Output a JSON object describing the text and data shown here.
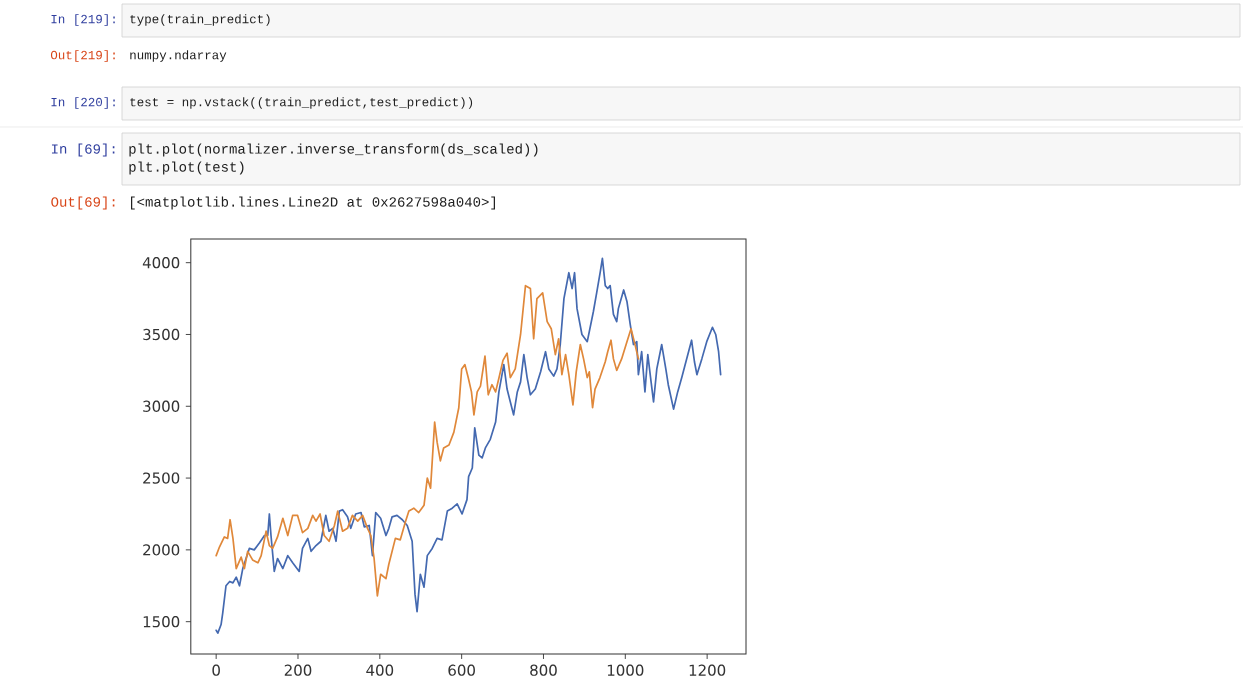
{
  "chart_data": {
    "type": "line",
    "xlim": [
      -62,
      1295
    ],
    "ylim": [
      1275,
      4165
    ],
    "xticks": [
      0,
      200,
      400,
      600,
      800,
      1000,
      1200
    ],
    "yticks": [
      1500,
      2000,
      2500,
      3000,
      3500,
      4000
    ],
    "series": [
      {
        "color": "#4469b0",
        "x": [
          0,
          4,
          12,
          16,
          24,
          33,
          41,
          49,
          57,
          65,
          73,
          81,
          93,
          106,
          118,
          126,
          130,
          134,
          142,
          150,
          163,
          175,
          187,
          203,
          211,
          224,
          232,
          244,
          256,
          268,
          276,
          285,
          293,
          301,
          309,
          321,
          329,
          341,
          354,
          362,
          374,
          382,
          390,
          402,
          415,
          422,
          430,
          442,
          455,
          467,
          479,
          486,
          491,
          499,
          508,
          516,
          528,
          540,
          552,
          565,
          577,
          589,
          601,
          613,
          617,
          626,
          632,
          642,
          650,
          658,
          670,
          683,
          691,
          703,
          711,
          719,
          727,
          736,
          744,
          752,
          760,
          768,
          780,
          793,
          805,
          813,
          825,
          833,
          841,
          850,
          862,
          870,
          876,
          882,
          894,
          907,
          922,
          930,
          939,
          944,
          951,
          957,
          963,
          971,
          979,
          983,
          996,
          1004,
          1012,
          1020,
          1028,
          1032,
          1040,
          1048,
          1055,
          1063,
          1069,
          1077,
          1089,
          1099,
          1105,
          1118,
          1128,
          1138,
          1150,
          1162,
          1169,
          1175,
          1187,
          1199,
          1213,
          1221,
          1228,
          1233
        ],
        "values": [
          1440,
          1420,
          1480,
          1560,
          1750,
          1780,
          1770,
          1810,
          1750,
          1870,
          1940,
          2010,
          2000,
          2050,
          2100,
          2100,
          2250,
          2100,
          1850,
          1940,
          1870,
          1960,
          1910,
          1850,
          2010,
          2080,
          1990,
          2030,
          2060,
          2240,
          2130,
          2150,
          2060,
          2270,
          2280,
          2230,
          2150,
          2250,
          2260,
          2160,
          2170,
          1960,
          2260,
          2220,
          2100,
          2150,
          2230,
          2240,
          2210,
          2170,
          2060,
          1690,
          1570,
          1830,
          1740,
          1960,
          2010,
          2080,
          2070,
          2270,
          2290,
          2320,
          2250,
          2350,
          2510,
          2570,
          2850,
          2660,
          2640,
          2710,
          2770,
          2890,
          3100,
          3290,
          3120,
          3030,
          2940,
          3100,
          3170,
          3360,
          3200,
          3080,
          3120,
          3240,
          3380,
          3260,
          3210,
          3260,
          3430,
          3750,
          3930,
          3820,
          3930,
          3680,
          3500,
          3450,
          3660,
          3790,
          3940,
          4030,
          3840,
          3820,
          3840,
          3640,
          3590,
          3680,
          3810,
          3730,
          3570,
          3430,
          3450,
          3220,
          3380,
          3100,
          3360,
          3170,
          3030,
          3260,
          3430,
          3260,
          3150,
          2980,
          3100,
          3200,
          3330,
          3460,
          3310,
          3220,
          3330,
          3450,
          3550,
          3500,
          3380,
          3220
        ]
      },
      {
        "color": "#e0883a",
        "x": [
          0,
          8,
          20,
          28,
          34,
          41,
          49,
          61,
          69,
          77,
          89,
          102,
          110,
          122,
          130,
          138,
          150,
          163,
          175,
          187,
          199,
          211,
          224,
          236,
          244,
          254,
          264,
          276,
          289,
          297,
          309,
          321,
          333,
          346,
          358,
          370,
          378,
          386,
          394,
          402,
          415,
          422,
          438,
          450,
          463,
          471,
          483,
          495,
          508,
          516,
          524,
          534,
          540,
          548,
          556,
          569,
          581,
          593,
          600,
          608,
          616,
          624,
          630,
          638,
          646,
          657,
          665,
          674,
          683,
          693,
          701,
          711,
          719,
          731,
          744,
          756,
          768,
          776,
          784,
          798,
          809,
          819,
          829,
          837,
          845,
          854,
          862,
          872,
          880,
          890,
          898,
          907,
          912,
          920,
          926,
          938,
          951,
          957,
          965,
          971,
          979,
          991,
          1004,
          1014,
          1022,
          1032
        ],
        "values": [
          1960,
          2020,
          2090,
          2080,
          2210,
          2080,
          1870,
          1950,
          1870,
          1990,
          1930,
          1910,
          1960,
          2130,
          2030,
          2010,
          2090,
          2220,
          2100,
          2240,
          2240,
          2120,
          2150,
          2240,
          2200,
          2250,
          2100,
          2060,
          2170,
          2270,
          2130,
          2150,
          2240,
          2200,
          2240,
          2150,
          2100,
          1940,
          1680,
          1830,
          1800,
          1900,
          2080,
          2070,
          2200,
          2270,
          2290,
          2260,
          2310,
          2500,
          2430,
          2890,
          2750,
          2620,
          2710,
          2730,
          2820,
          2990,
          3260,
          3290,
          3200,
          3100,
          2940,
          3100,
          3140,
          3350,
          3080,
          3150,
          3100,
          3220,
          3320,
          3370,
          3200,
          3260,
          3500,
          3840,
          3820,
          3470,
          3750,
          3790,
          3590,
          3540,
          3360,
          3470,
          3220,
          3360,
          3220,
          3010,
          3240,
          3430,
          3330,
          3200,
          3240,
          2990,
          3120,
          3200,
          3310,
          3380,
          3460,
          3330,
          3250,
          3330,
          3450,
          3540,
          3450,
          3330
        ]
      }
    ],
    "annotations": [
      "In [219]:",
      "type(train_predict)",
      "Out[219]:",
      "numpy.ndarray",
      "In [220]:",
      "test = np.vstack((train_predict,test_predict))",
      "In [69]:",
      "plt.plot(normalizer.inverse_transform(ds_scaled))",
      "plt.plot(test)",
      "Out[69]:",
      "[<matplotlib.lines.Line2D at 0x2627598a040>]"
    ]
  }
}
